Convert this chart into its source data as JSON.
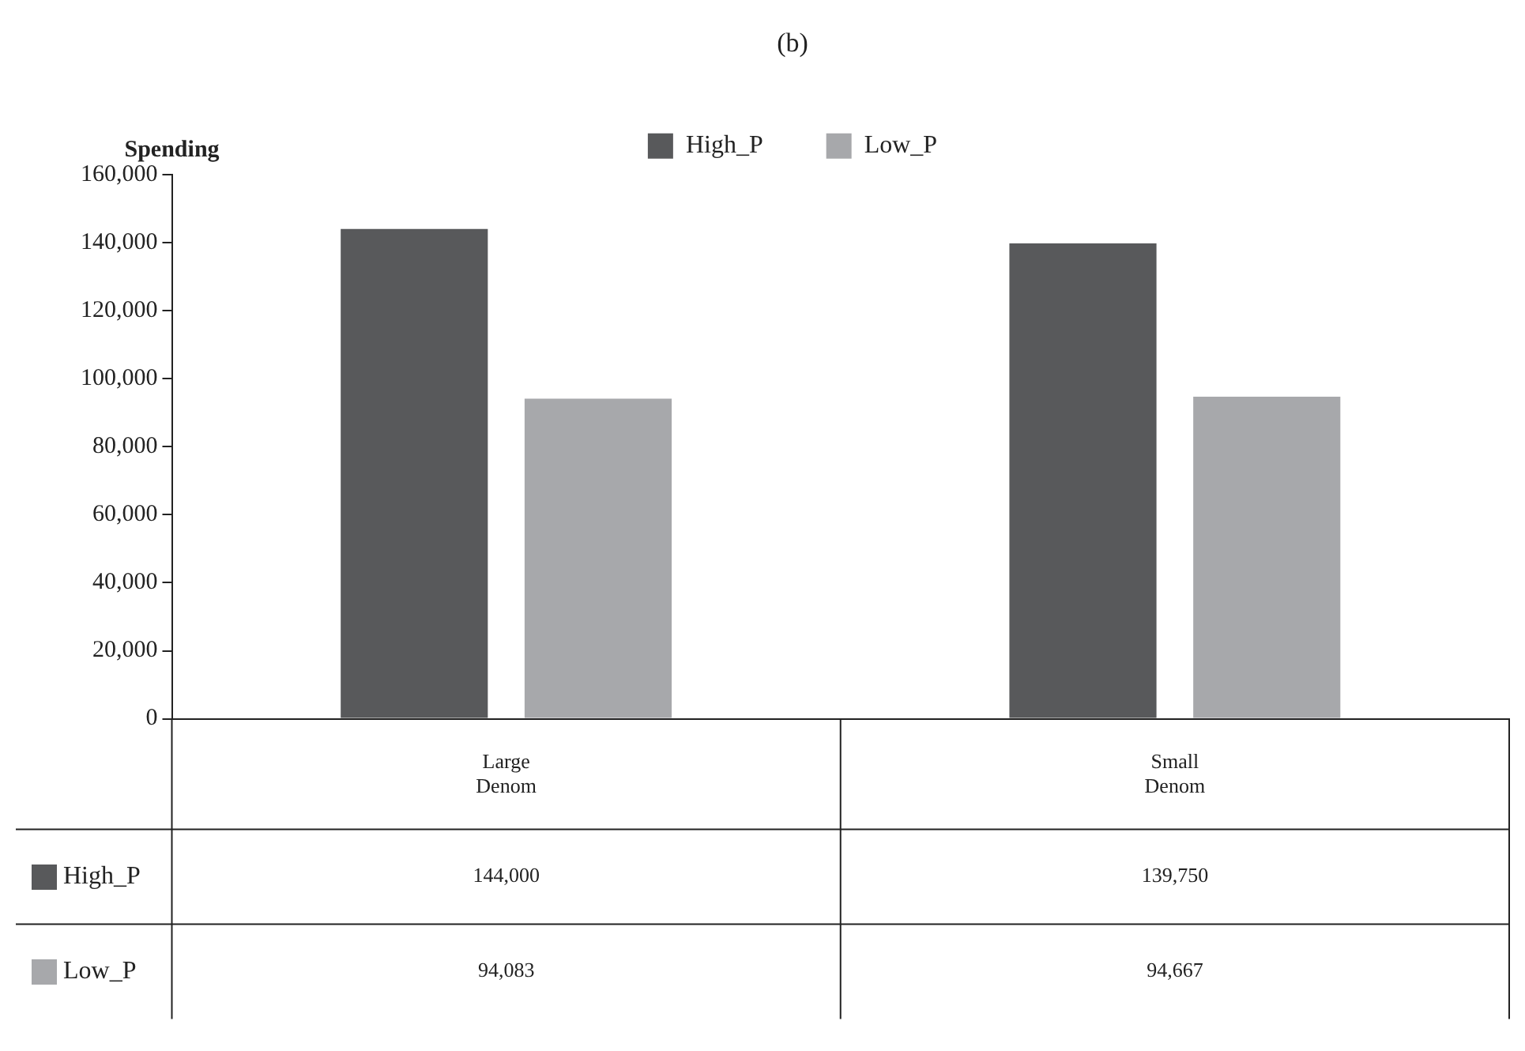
{
  "chart_data": {
    "type": "bar",
    "title": "(b)",
    "ylabel": "Spending",
    "categories": [
      "Large Denom",
      "Small Denom"
    ],
    "series": [
      {
        "name": "High_P",
        "color": "#58595b",
        "values": [
          144000,
          139750
        ],
        "value_labels": [
          "144,000",
          "139,750"
        ]
      },
      {
        "name": "Low_P",
        "color": "#a7a8ab",
        "values": [
          94083,
          94667
        ],
        "value_labels": [
          "94,083",
          "94,667"
        ]
      }
    ],
    "ylim": [
      0,
      160000
    ],
    "yticks": [
      0,
      {
        "value": 20000,
        "label": "20,000"
      },
      {
        "value": 40000,
        "label": "40,000"
      },
      {
        "value": 60000,
        "label": "60,000"
      },
      {
        "value": 80000,
        "label": "80,000"
      },
      {
        "value": 100000,
        "label": "100,000"
      },
      {
        "value": 120000,
        "label": "120,000"
      },
      {
        "value": 140000,
        "label": "140,000"
      },
      {
        "value": 160000,
        "label": "160,000"
      }
    ],
    "grid": false,
    "legend": "top"
  }
}
